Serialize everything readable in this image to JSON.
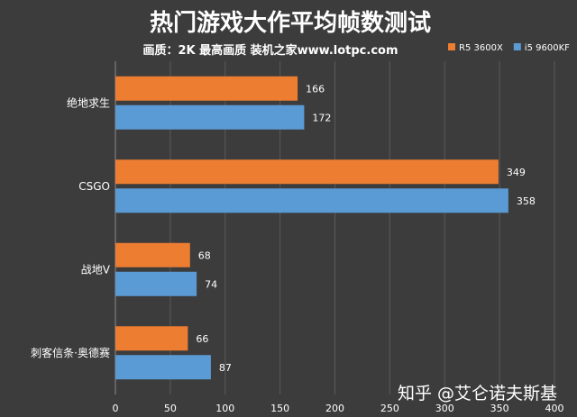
{
  "chart_data": {
    "type": "bar",
    "orientation": "horizontal",
    "title": "热门游戏大作平均帧数测试",
    "subtitle": "画质：2K 最高画质 装机之家www.lotpc.com",
    "categories": [
      "绝地求生",
      "CSGO",
      "战地V",
      "刺客信条·奥德赛"
    ],
    "series": [
      {
        "name": "R5 3600X",
        "color": "#ed7d31",
        "values": [
          166,
          349,
          68,
          66
        ]
      },
      {
        "name": "i5 9600KF",
        "color": "#5b9bd5",
        "values": [
          172,
          358,
          74,
          87
        ]
      }
    ],
    "xlim": [
      0,
      400
    ],
    "xticks": [
      0,
      50,
      100,
      150,
      200,
      250,
      300,
      350,
      400
    ],
    "grid": true,
    "legend_position": "top-right"
  },
  "watermark": "知乎 @艾仑诺夫斯基",
  "colors": {
    "background": "#3c3c3c",
    "grid": "#5a5a5a",
    "text": "#ffffff"
  }
}
